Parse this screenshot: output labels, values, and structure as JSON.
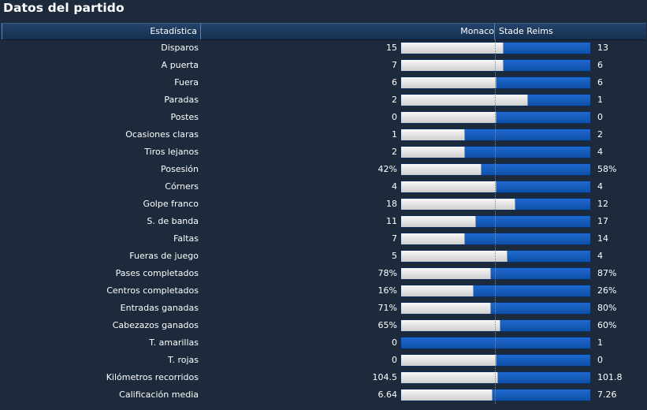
{
  "title": "Datos del partido",
  "header": {
    "stat": "Estadística",
    "home": "Monaco",
    "away": "Stade Reims"
  },
  "colors": {
    "background": "#1c2a3c",
    "header_bg": "#1d3a5f",
    "home_bar": "#e6e6e6",
    "away_bar": "#1a5fc0"
  },
  "stats": [
    {
      "label": "Disparos",
      "home": "15",
      "away": "13",
      "home_share": 0.536
    },
    {
      "label": "A puerta",
      "home": "7",
      "away": "6",
      "home_share": 0.538
    },
    {
      "label": "Fuera",
      "home": "6",
      "away": "6",
      "home_share": 0.5
    },
    {
      "label": "Paradas",
      "home": "2",
      "away": "1",
      "home_share": 0.667
    },
    {
      "label": "Postes",
      "home": "0",
      "away": "0",
      "home_share": 0.5
    },
    {
      "label": "Ocasiones claras",
      "home": "1",
      "away": "2",
      "home_share": 0.333
    },
    {
      "label": "Tiros lejanos",
      "home": "2",
      "away": "4",
      "home_share": 0.333
    },
    {
      "label": "Posesión",
      "home": "42%",
      "away": "58%",
      "home_share": 0.42
    },
    {
      "label": "Córners",
      "home": "4",
      "away": "4",
      "home_share": 0.5
    },
    {
      "label": "Golpe franco",
      "home": "18",
      "away": "12",
      "home_share": 0.6
    },
    {
      "label": "S. de banda",
      "home": "11",
      "away": "17",
      "home_share": 0.393
    },
    {
      "label": "Faltas",
      "home": "7",
      "away": "14",
      "home_share": 0.333
    },
    {
      "label": "Fueras de juego",
      "home": "5",
      "away": "4",
      "home_share": 0.556
    },
    {
      "label": "Pases completados",
      "home": "78%",
      "away": "87%",
      "home_share": 0.473
    },
    {
      "label": "Centros completados",
      "home": "16%",
      "away": "26%",
      "home_share": 0.381
    },
    {
      "label": "Entradas ganadas",
      "home": "71%",
      "away": "80%",
      "home_share": 0.47
    },
    {
      "label": "Cabezazos ganados",
      "home": "65%",
      "away": "60%",
      "home_share": 0.52
    },
    {
      "label": "T. amarillas",
      "home": "0",
      "away": "1",
      "home_share": 0.0
    },
    {
      "label": "T. rojas",
      "home": "0",
      "away": "0",
      "home_share": 0.5
    },
    {
      "label": "Kilómetros recorridos",
      "home": "104.5",
      "away": "101.8",
      "home_share": 0.507
    },
    {
      "label": "Calificación media",
      "home": "6.64",
      "away": "7.26",
      "home_share": 0.478
    }
  ]
}
